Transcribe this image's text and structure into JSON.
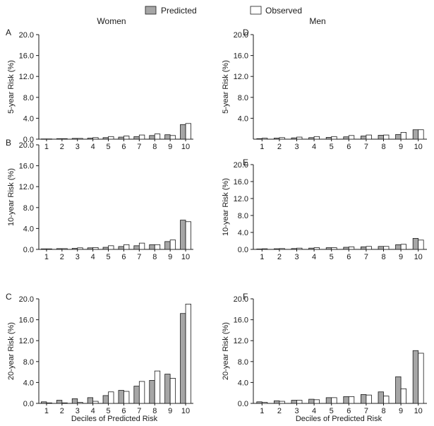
{
  "legend": {
    "predicted_label": "Predicted",
    "observed_label": "Observed",
    "predicted_color": "#a6a6a6",
    "observed_color": "#ffffff"
  },
  "columns": {
    "left_title": "Women",
    "right_title": "Men"
  },
  "xlabel": "Deciles of Predicted Risk",
  "chart_data": [
    {
      "panel": "A",
      "type": "bar",
      "group": "Women",
      "ylabel": "5-year Risk (%)",
      "categories": [
        "1",
        "2",
        "3",
        "4",
        "5",
        "6",
        "7",
        "8",
        "9",
        "10"
      ],
      "ylim": [
        0,
        20
      ],
      "yticks": [
        "0.0",
        "4.0",
        "8.0",
        "12.0",
        "16.0",
        "20.0"
      ],
      "series": [
        {
          "name": "Predicted",
          "values": [
            0.05,
            0.1,
            0.15,
            0.2,
            0.3,
            0.4,
            0.5,
            0.7,
            0.85,
            2.8
          ]
        },
        {
          "name": "Observed",
          "values": [
            0.05,
            0.1,
            0.15,
            0.3,
            0.5,
            0.6,
            0.8,
            1.0,
            0.7,
            3.0
          ]
        }
      ]
    },
    {
      "panel": "B",
      "type": "bar",
      "group": "Women",
      "ylabel": "10-year Risk (%)",
      "categories": [
        "1",
        "2",
        "3",
        "4",
        "5",
        "6",
        "7",
        "8",
        "9",
        "10"
      ],
      "ylim": [
        0,
        20
      ],
      "yticks": [
        "0.0",
        "4.0",
        "8.0",
        "12.0",
        "16.0",
        "20.0"
      ],
      "series": [
        {
          "name": "Predicted",
          "values": [
            0.1,
            0.15,
            0.2,
            0.3,
            0.4,
            0.55,
            0.7,
            0.9,
            1.5,
            5.6
          ]
        },
        {
          "name": "Observed",
          "values": [
            0.1,
            0.15,
            0.3,
            0.35,
            0.7,
            0.9,
            1.2,
            0.9,
            1.8,
            5.3
          ]
        }
      ]
    },
    {
      "panel": "C",
      "type": "bar",
      "group": "Women",
      "ylabel": "20-year Risk (%)",
      "categories": [
        "1",
        "2",
        "3",
        "4",
        "5",
        "6",
        "7",
        "8",
        "9",
        "10"
      ],
      "ylim": [
        0,
        20
      ],
      "yticks": [
        "0.0",
        "4.0",
        "8.0",
        "12.0",
        "16.0",
        "20.0"
      ],
      "series": [
        {
          "name": "Predicted",
          "values": [
            0.3,
            0.6,
            0.9,
            1.1,
            1.5,
            2.5,
            3.3,
            4.4,
            5.6,
            17.2
          ]
        },
        {
          "name": "Observed",
          "values": [
            0.1,
            0.1,
            0.2,
            0.4,
            2.2,
            2.3,
            4.2,
            6.2,
            4.8,
            19.0
          ]
        }
      ]
    },
    {
      "panel": "D",
      "type": "bar",
      "group": "Men",
      "ylabel": "5-year Risk (%)",
      "categories": [
        "1",
        "2",
        "3",
        "4",
        "5",
        "6",
        "7",
        "8",
        "9",
        "10"
      ],
      "ylim": [
        0,
        20
      ],
      "yticks": [
        "4.0",
        "8.0",
        "12.0",
        "16.0",
        "20.0"
      ],
      "series": [
        {
          "name": "Predicted",
          "values": [
            0.1,
            0.2,
            0.25,
            0.3,
            0.35,
            0.45,
            0.6,
            0.75,
            0.9,
            1.8
          ]
        },
        {
          "name": "Observed",
          "values": [
            0.2,
            0.3,
            0.4,
            0.5,
            0.5,
            0.7,
            0.8,
            0.8,
            1.3,
            1.8
          ]
        }
      ]
    },
    {
      "panel": "E",
      "type": "bar",
      "group": "Men",
      "ylabel": "10-year Risk (%)",
      "categories": [
        "1",
        "2",
        "3",
        "4",
        "5",
        "6",
        "7",
        "8",
        "9",
        "10"
      ],
      "ylim": [
        0,
        20
      ],
      "yticks": [
        "0.0",
        "4.0",
        "8.0",
        "12.0",
        "16.0",
        "20.0"
      ],
      "series": [
        {
          "name": "Predicted",
          "values": [
            0.1,
            0.15,
            0.2,
            0.3,
            0.4,
            0.5,
            0.6,
            0.7,
            1.1,
            2.6
          ]
        },
        {
          "name": "Observed",
          "values": [
            0.15,
            0.2,
            0.3,
            0.4,
            0.4,
            0.6,
            0.7,
            0.7,
            1.2,
            2.2
          ]
        }
      ]
    },
    {
      "panel": "F",
      "type": "bar",
      "group": "Men",
      "ylabel": "20-year Risk (%)",
      "categories": [
        "1",
        "2",
        "3",
        "4",
        "5",
        "6",
        "7",
        "8",
        "9",
        "10"
      ],
      "ylim": [
        0,
        20
      ],
      "yticks": [
        "0.0",
        "4.0",
        "8.0",
        "12.0",
        "16.0",
        "20.0"
      ],
      "series": [
        {
          "name": "Predicted",
          "values": [
            0.3,
            0.5,
            0.6,
            0.8,
            1.1,
            1.3,
            1.7,
            2.2,
            5.1,
            10.1
          ]
        },
        {
          "name": "Observed",
          "values": [
            0.2,
            0.4,
            0.6,
            0.7,
            1.1,
            1.3,
            1.6,
            1.4,
            2.8,
            9.6
          ]
        }
      ]
    }
  ]
}
